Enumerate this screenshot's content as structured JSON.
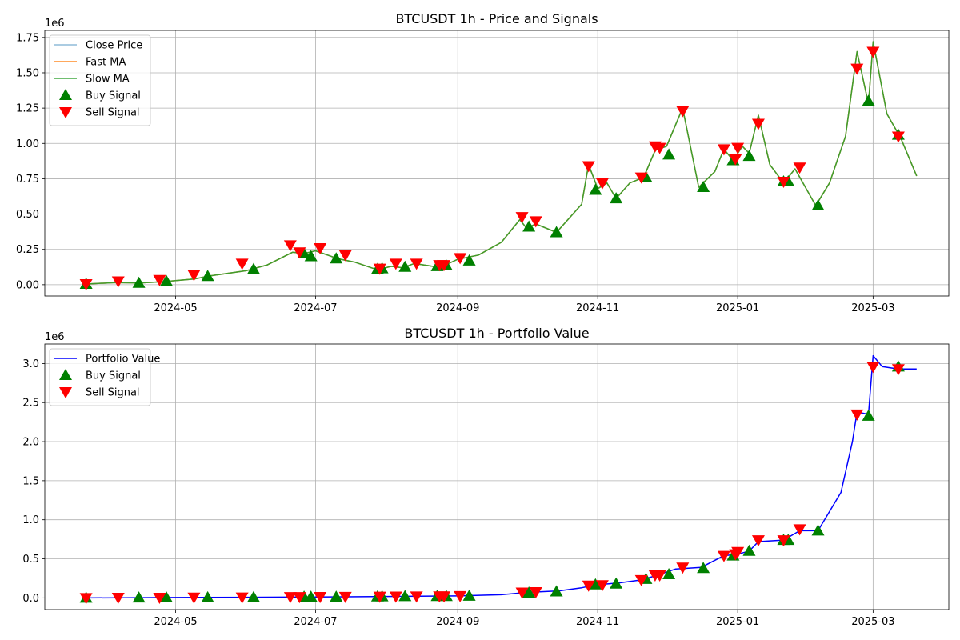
{
  "colors": {
    "close_price": "#1f77b4",
    "fast_ma": "#ff7f0e",
    "slow_ma": "#2ca02c",
    "buy": "#008000",
    "sell": "#ff0000",
    "portfolio": "#0000ff",
    "grid": "#b0b0b0"
  },
  "chart_data": [
    {
      "type": "line",
      "title": "BTCUSDT 1h - Price and Signals",
      "xlabel": "",
      "ylabel": "",
      "y_offset_label": "1e6",
      "x_ticks": [
        "2024-05",
        "2024-07",
        "2024-09",
        "2024-11",
        "2025-01",
        "2025-03"
      ],
      "y_ticks": [
        "0.00",
        "0.25",
        "0.50",
        "0.75",
        "1.00",
        "1.25",
        "1.50",
        "1.75"
      ],
      "xlim": [
        "2024-03-05",
        "2025-04-03"
      ],
      "ylim": [
        -80000,
        1800000
      ],
      "grid": true,
      "legend_position": "upper left",
      "x": [
        "2024-03-23",
        "2024-04-05",
        "2024-04-15",
        "2024-04-25",
        "2024-05-09",
        "2024-05-15",
        "2024-06-01",
        "2024-06-10",
        "2024-06-21",
        "2024-06-26",
        "2024-07-01",
        "2024-07-08",
        "2024-07-12",
        "2024-07-18",
        "2024-07-28",
        "2024-08-03",
        "2024-08-08",
        "2024-08-13",
        "2024-08-21",
        "2024-08-26",
        "2024-09-01",
        "2024-09-10",
        "2024-09-20",
        "2024-09-28",
        "2024-10-01",
        "2024-10-05",
        "2024-10-14",
        "2024-10-25",
        "2024-10-28",
        "2024-11-01",
        "2024-11-05",
        "2024-11-09",
        "2024-11-15",
        "2024-11-21",
        "2024-11-26",
        "2024-12-01",
        "2024-12-08",
        "2024-12-15",
        "2024-12-22",
        "2024-12-26",
        "2024-12-30",
        "2025-01-03",
        "2025-01-06",
        "2025-01-10",
        "2025-01-15",
        "2025-01-21",
        "2025-01-26",
        "2025-02-04",
        "2025-02-10",
        "2025-02-17",
        "2025-02-22",
        "2025-02-27",
        "2025-03-01",
        "2025-03-07",
        "2025-03-13",
        "2025-03-20"
      ],
      "series": [
        {
          "name": "Close Price",
          "values": [
            5000,
            15000,
            12000,
            20000,
            40000,
            60000,
            100000,
            140000,
            230000,
            220000,
            240000,
            200000,
            180000,
            160000,
            105000,
            130000,
            120000,
            150000,
            130000,
            135000,
            180000,
            210000,
            300000,
            460000,
            400000,
            430000,
            370000,
            570000,
            850000,
            680000,
            720000,
            610000,
            720000,
            760000,
            950000,
            980000,
            1250000,
            690000,
            800000,
            960000,
            880000,
            980000,
            930000,
            1200000,
            850000,
            720000,
            820000,
            560000,
            720000,
            1050000,
            1650000,
            1280000,
            1720000,
            1210000,
            1040000,
            770000
          ]
        },
        {
          "name": "Fast MA",
          "values": [
            5000,
            15000,
            12000,
            20000,
            40000,
            60000,
            100000,
            140000,
            230000,
            220000,
            240000,
            200000,
            180000,
            160000,
            105000,
            130000,
            120000,
            150000,
            130000,
            135000,
            180000,
            210000,
            300000,
            460000,
            400000,
            430000,
            370000,
            570000,
            850000,
            680000,
            720000,
            610000,
            720000,
            760000,
            950000,
            980000,
            1250000,
            690000,
            800000,
            960000,
            880000,
            980000,
            930000,
            1200000,
            850000,
            720000,
            820000,
            560000,
            720000,
            1050000,
            1650000,
            1280000,
            1720000,
            1210000,
            1040000,
            770000
          ]
        },
        {
          "name": "Slow MA",
          "values": [
            5000,
            15000,
            12000,
            20000,
            40000,
            60000,
            100000,
            140000,
            230000,
            220000,
            240000,
            200000,
            180000,
            160000,
            105000,
            130000,
            120000,
            150000,
            130000,
            135000,
            180000,
            210000,
            300000,
            460000,
            400000,
            430000,
            370000,
            570000,
            850000,
            680000,
            720000,
            610000,
            720000,
            760000,
            950000,
            980000,
            1250000,
            690000,
            800000,
            960000,
            880000,
            980000,
            930000,
            1200000,
            850000,
            720000,
            820000,
            560000,
            720000,
            1050000,
            1650000,
            1280000,
            1720000,
            1210000,
            1040000,
            770000
          ]
        },
        {
          "name": "Buy Signal",
          "type": "scatter",
          "points": [
            [
              "2024-03-23",
              5000
            ],
            [
              "2024-04-15",
              12000
            ],
            [
              "2024-04-27",
              25000
            ],
            [
              "2024-05-15",
              60000
            ],
            [
              "2024-06-04",
              110000
            ],
            [
              "2024-06-26",
              220000
            ],
            [
              "2024-06-29",
              200000
            ],
            [
              "2024-07-10",
              185000
            ],
            [
              "2024-07-28",
              110000
            ],
            [
              "2024-07-30",
              115000
            ],
            [
              "2024-08-09",
              125000
            ],
            [
              "2024-08-23",
              130000
            ],
            [
              "2024-08-27",
              135000
            ],
            [
              "2024-09-06",
              170000
            ],
            [
              "2024-10-02",
              410000
            ],
            [
              "2024-10-14",
              370000
            ],
            [
              "2024-10-31",
              670000
            ],
            [
              "2024-11-09",
              610000
            ],
            [
              "2024-11-22",
              760000
            ],
            [
              "2024-12-02",
              920000
            ],
            [
              "2024-12-17",
              690000
            ],
            [
              "2024-12-30",
              880000
            ],
            [
              "2025-01-06",
              910000
            ],
            [
              "2025-01-21",
              730000
            ],
            [
              "2025-01-23",
              730000
            ],
            [
              "2025-02-05",
              560000
            ],
            [
              "2025-02-27",
              1300000
            ],
            [
              "2025-03-12",
              1060000
            ]
          ]
        },
        {
          "name": "Sell Signal",
          "type": "scatter",
          "points": [
            [
              "2024-03-23",
              5000
            ],
            [
              "2024-04-06",
              25000
            ],
            [
              "2024-04-24",
              35000
            ],
            [
              "2024-05-09",
              70000
            ],
            [
              "2024-05-30",
              150000
            ],
            [
              "2024-06-20",
              280000
            ],
            [
              "2024-06-24",
              230000
            ],
            [
              "2024-07-03",
              260000
            ],
            [
              "2024-07-14",
              210000
            ],
            [
              "2024-07-29",
              115000
            ],
            [
              "2024-08-05",
              150000
            ],
            [
              "2024-08-14",
              150000
            ],
            [
              "2024-08-24",
              140000
            ],
            [
              "2024-08-26",
              140000
            ],
            [
              "2024-09-02",
              190000
            ],
            [
              "2024-09-29",
              480000
            ],
            [
              "2024-10-05",
              450000
            ],
            [
              "2024-10-28",
              840000
            ],
            [
              "2024-11-03",
              720000
            ],
            [
              "2024-11-20",
              760000
            ],
            [
              "2024-11-26",
              980000
            ],
            [
              "2024-11-28",
              970000
            ],
            [
              "2024-12-08",
              1230000
            ],
            [
              "2024-12-26",
              960000
            ],
            [
              "2024-12-31",
              890000
            ],
            [
              "2025-01-01",
              970000
            ],
            [
              "2025-01-10",
              1140000
            ],
            [
              "2025-01-21",
              730000
            ],
            [
              "2025-01-28",
              830000
            ],
            [
              "2025-02-22",
              1530000
            ],
            [
              "2025-03-01",
              1650000
            ],
            [
              "2025-03-12",
              1050000
            ]
          ]
        }
      ]
    },
    {
      "type": "line",
      "title": "BTCUSDT 1h - Portfolio Value",
      "xlabel": "",
      "ylabel": "",
      "y_offset_label": "1e6",
      "x_ticks": [
        "2024-05",
        "2024-07",
        "2024-09",
        "2024-11",
        "2025-01",
        "2025-03"
      ],
      "y_ticks": [
        "0.0",
        "0.5",
        "1.0",
        "1.5",
        "2.0",
        "2.5",
        "3.0"
      ],
      "xlim": [
        "2024-03-05",
        "2025-04-03"
      ],
      "ylim": [
        -150000,
        3250000
      ],
      "grid": true,
      "legend_position": "upper left",
      "x": [
        "2024-03-23",
        "2024-05-01",
        "2024-06-01",
        "2024-07-01",
        "2024-08-01",
        "2024-09-01",
        "2024-09-20",
        "2024-10-01",
        "2024-10-15",
        "2024-10-25",
        "2024-11-01",
        "2024-11-10",
        "2024-11-20",
        "2024-11-27",
        "2024-12-05",
        "2024-12-16",
        "2024-12-26",
        "2025-01-01",
        "2025-01-06",
        "2025-01-10",
        "2025-01-21",
        "2025-01-28",
        "2025-02-05",
        "2025-02-15",
        "2025-02-20",
        "2025-02-22",
        "2025-02-27",
        "2025-03-01",
        "2025-03-05",
        "2025-03-12",
        "2025-03-20"
      ],
      "series": [
        {
          "name": "Portfolio Value",
          "values": [
            0,
            5000,
            8000,
            12000,
            18000,
            25000,
            40000,
            70000,
            90000,
            130000,
            170000,
            190000,
            230000,
            290000,
            370000,
            390000,
            540000,
            560000,
            600000,
            720000,
            740000,
            860000,
            860000,
            1350000,
            2000000,
            2380000,
            2350000,
            3100000,
            2960000,
            2930000,
            2930000
          ]
        },
        {
          "name": "Buy Signal",
          "type": "scatter",
          "points": [
            [
              "2024-03-23",
              0
            ],
            [
              "2024-04-15",
              2000
            ],
            [
              "2024-04-27",
              3000
            ],
            [
              "2024-05-15",
              5000
            ],
            [
              "2024-06-04",
              8000
            ],
            [
              "2024-06-26",
              12000
            ],
            [
              "2024-06-29",
              12000
            ],
            [
              "2024-07-10",
              13000
            ],
            [
              "2024-07-28",
              17000
            ],
            [
              "2024-07-30",
              18000
            ],
            [
              "2024-08-09",
              20000
            ],
            [
              "2024-08-23",
              21000
            ],
            [
              "2024-08-27",
              22000
            ],
            [
              "2024-09-06",
              25000
            ],
            [
              "2024-10-02",
              65000
            ],
            [
              "2024-10-14",
              80000
            ],
            [
              "2024-10-31",
              170000
            ],
            [
              "2024-11-09",
              180000
            ],
            [
              "2024-11-22",
              240000
            ],
            [
              "2024-12-02",
              300000
            ],
            [
              "2024-12-17",
              380000
            ],
            [
              "2024-12-30",
              540000
            ],
            [
              "2025-01-06",
              600000
            ],
            [
              "2025-01-21",
              740000
            ],
            [
              "2025-01-23",
              740000
            ],
            [
              "2025-02-05",
              860000
            ],
            [
              "2025-02-27",
              2330000
            ],
            [
              "2025-03-12",
              2960000
            ]
          ]
        },
        {
          "name": "Sell Signal",
          "type": "scatter",
          "points": [
            [
              "2024-03-23",
              0
            ],
            [
              "2024-04-06",
              3000
            ],
            [
              "2024-04-24",
              4000
            ],
            [
              "2024-05-09",
              6000
            ],
            [
              "2024-05-30",
              8000
            ],
            [
              "2024-06-20",
              12000
            ],
            [
              "2024-06-24",
              12000
            ],
            [
              "2024-07-03",
              14000
            ],
            [
              "2024-07-14",
              15000
            ],
            [
              "2024-07-29",
              18000
            ],
            [
              "2024-08-05",
              19000
            ],
            [
              "2024-08-14",
              20000
            ],
            [
              "2024-08-24",
              22000
            ],
            [
              "2024-08-26",
              22000
            ],
            [
              "2024-09-02",
              25000
            ],
            [
              "2024-09-29",
              70000
            ],
            [
              "2024-10-05",
              75000
            ],
            [
              "2024-10-28",
              160000
            ],
            [
              "2024-11-03",
              165000
            ],
            [
              "2024-11-20",
              230000
            ],
            [
              "2024-11-26",
              290000
            ],
            [
              "2024-11-28",
              290000
            ],
            [
              "2024-12-08",
              390000
            ],
            [
              "2024-12-26",
              540000
            ],
            [
              "2024-12-31",
              560000
            ],
            [
              "2025-01-01",
              590000
            ],
            [
              "2025-01-10",
              740000
            ],
            [
              "2025-01-21",
              740000
            ],
            [
              "2025-01-28",
              880000
            ],
            [
              "2025-02-22",
              2350000
            ],
            [
              "2025-03-01",
              2960000
            ],
            [
              "2025-03-12",
              2930000
            ]
          ]
        }
      ]
    }
  ]
}
